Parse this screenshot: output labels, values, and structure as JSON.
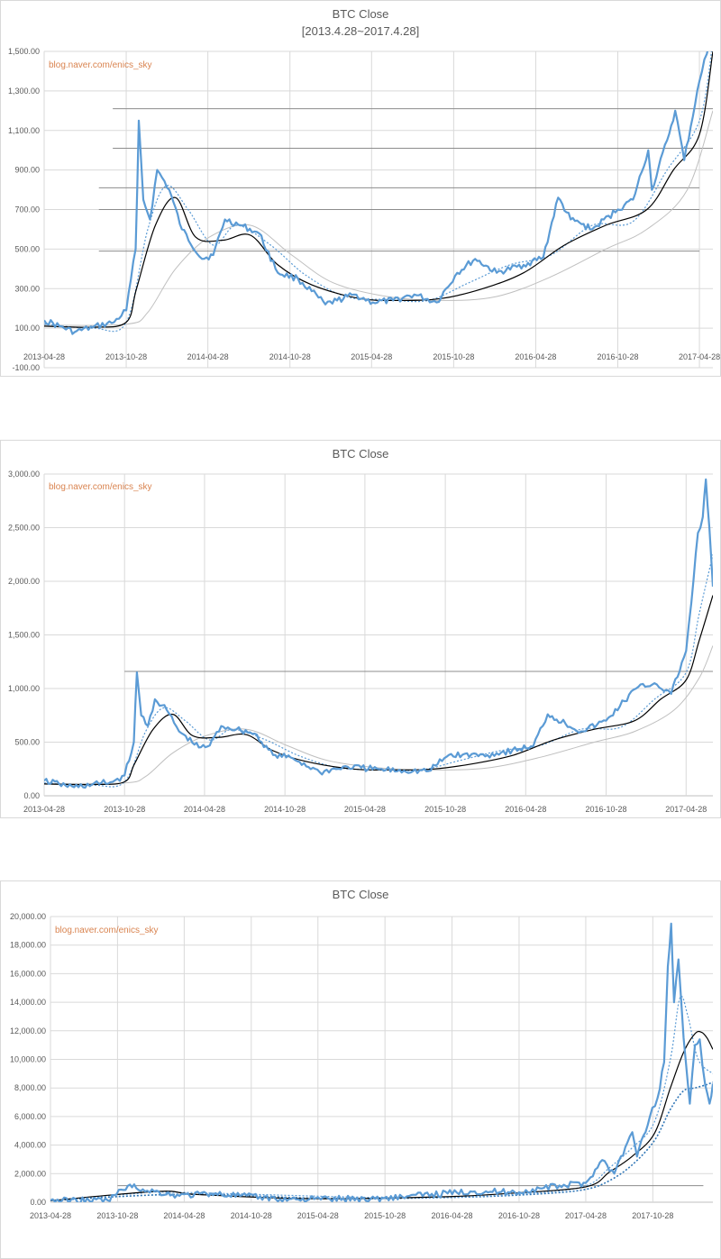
{
  "chart_data": [
    {
      "type": "line",
      "title": "BTC Close",
      "subtitle": "[2013.4.28~2017.4.28]",
      "watermark": "blog.naver.com/enics_sky",
      "x_tick_labels": [
        "2013-04-28",
        "2013-10-28",
        "2014-04-28",
        "2014-10-28",
        "2015-04-28",
        "2015-10-28",
        "2016-04-28",
        "2016-10-28",
        "2017-04-28"
      ],
      "y_tick_labels": [
        "-100.00",
        "100.00",
        "300.00",
        "500.00",
        "700.00",
        "900.00",
        "1,100.00",
        "1,300.00",
        "1,500.00"
      ],
      "ylim": [
        -100,
        1500
      ],
      "xlim": [
        "2013-04-28",
        "2017-05-28"
      ],
      "grid": true,
      "legend": "none",
      "h_lines": [
        {
          "y": 1210,
          "x_start": "2013-09-28",
          "x_end": "2017-05-28"
        },
        {
          "y": 1010,
          "x_start": "2013-09-28",
          "x_end": "2017-05-28"
        },
        {
          "y": 810,
          "x_start": "2013-08-28",
          "x_end": "2017-04-28"
        },
        {
          "y": 700,
          "x_start": "2013-08-28",
          "x_end": "2017-04-28"
        },
        {
          "y": 490,
          "x_start": "2013-08-28",
          "x_end": "2017-04-28"
        }
      ],
      "series": [
        {
          "style": "price",
          "color": "#5b9bd5",
          "x": [
            "2013-04-28",
            "2013-06-01",
            "2013-07-05",
            "2013-08-15",
            "2013-10-01",
            "2013-10-28",
            "2013-11-18",
            "2013-11-25",
            "2013-12-05",
            "2013-12-20",
            "2014-01-05",
            "2014-02-01",
            "2014-03-01",
            "2014-04-15",
            "2014-05-10",
            "2014-06-05",
            "2014-07-10",
            "2014-08-20",
            "2014-10-01",
            "2014-11-15",
            "2015-01-15",
            "2015-02-10",
            "2015-03-20",
            "2015-05-01",
            "2015-06-15",
            "2015-08-01",
            "2015-09-20",
            "2015-11-05",
            "2015-12-15",
            "2016-02-01",
            "2016-04-01",
            "2016-05-15",
            "2016-06-17",
            "2016-07-15",
            "2016-09-01",
            "2016-10-28",
            "2016-12-01",
            "2017-01-04",
            "2017-01-12",
            "2017-02-15",
            "2017-03-05",
            "2017-03-25",
            "2017-04-28",
            "2017-05-20"
          ],
          "y": [
            140,
            110,
            80,
            105,
            130,
            190,
            500,
            1150,
            750,
            650,
            900,
            800,
            600,
            450,
            470,
            650,
            620,
            580,
            380,
            350,
            220,
            240,
            270,
            230,
            240,
            270,
            230,
            380,
            450,
            380,
            420,
            460,
            760,
            650,
            600,
            700,
            750,
            1000,
            800,
            1050,
            1200,
            950,
            1350,
            1540
          ]
        },
        {
          "style": "dotted",
          "color": "#5b9bd5",
          "x": [
            "2013-04-28",
            "2013-08-15",
            "2013-10-28",
            "2013-12-15",
            "2014-01-25",
            "2014-03-15",
            "2014-05-10",
            "2014-07-01",
            "2014-09-15",
            "2014-12-01",
            "2015-03-01",
            "2015-06-01",
            "2015-09-01",
            "2015-12-01",
            "2016-03-01",
            "2016-06-01",
            "2016-09-01",
            "2016-12-01",
            "2017-02-15",
            "2017-04-28",
            "2017-05-28"
          ],
          "y": [
            120,
            100,
            130,
            600,
            820,
            700,
            520,
            620,
            520,
            370,
            260,
            245,
            240,
            330,
            420,
            470,
            620,
            640,
            900,
            1150,
            1550
          ]
        },
        {
          "style": "black",
          "color": "#000000",
          "x": [
            "2013-04-28",
            "2013-08-15",
            "2013-10-28",
            "2013-11-20",
            "2014-01-01",
            "2014-02-15",
            "2014-04-01",
            "2014-06-01",
            "2014-08-01",
            "2014-10-01",
            "2014-12-15",
            "2015-04-01",
            "2015-07-01",
            "2015-10-01",
            "2016-01-01",
            "2016-04-01",
            "2016-07-01",
            "2016-10-01",
            "2017-01-01",
            "2017-03-01",
            "2017-04-28",
            "2017-05-28"
          ],
          "y": [
            110,
            105,
            130,
            300,
            620,
            760,
            560,
            545,
            570,
            420,
            320,
            250,
            240,
            250,
            300,
            380,
            520,
            620,
            700,
            900,
            1080,
            1500
          ]
        },
        {
          "style": "grey",
          "color": "#bfbfbf",
          "x": [
            "2013-04-28",
            "2013-10-28",
            "2013-12-15",
            "2014-02-15",
            "2014-05-01",
            "2014-08-01",
            "2014-11-01",
            "2015-02-01",
            "2015-06-01",
            "2015-10-01",
            "2016-02-01",
            "2016-06-01",
            "2016-10-01",
            "2017-01-01",
            "2017-04-01",
            "2017-05-28"
          ],
          "y": [
            115,
            120,
            180,
            400,
            560,
            620,
            470,
            330,
            260,
            240,
            260,
            360,
            500,
            600,
            800,
            1200
          ]
        }
      ]
    },
    {
      "type": "line",
      "title": "BTC Close",
      "watermark": "blog.naver.com/enics_sky",
      "x_tick_labels": [
        "2013-04-28",
        "2013-10-28",
        "2014-04-28",
        "2014-10-28",
        "2015-04-28",
        "2015-10-28",
        "2016-04-28",
        "2016-10-28",
        "2017-04-28"
      ],
      "y_tick_labels": [
        "0.00",
        "500.00",
        "1,000.00",
        "1,500.00",
        "2,000.00",
        "2,500.00",
        "3,000.00"
      ],
      "ylim": [
        0,
        3000
      ],
      "xlim": [
        "2013-04-28",
        "2017-06-28"
      ],
      "grid": true,
      "legend": "none",
      "h_lines": [
        {
          "y": 1160,
          "x_start": "2013-10-28",
          "x_end": "2017-06-28"
        }
      ],
      "series": [
        {
          "style": "price",
          "color": "#5b9bd5",
          "x": [
            "2013-04-28",
            "2013-06-01",
            "2013-07-05",
            "2013-08-15",
            "2013-10-01",
            "2013-10-28",
            "2013-11-18",
            "2013-11-25",
            "2013-12-05",
            "2013-12-20",
            "2014-01-05",
            "2014-02-01",
            "2014-03-01",
            "2014-04-15",
            "2014-05-10",
            "2014-06-05",
            "2014-07-10",
            "2014-08-20",
            "2014-10-01",
            "2014-11-15",
            "2015-01-15",
            "2015-03-20",
            "2015-06-15",
            "2015-09-20",
            "2015-11-05",
            "2016-02-01",
            "2016-05-15",
            "2016-06-17",
            "2016-09-01",
            "2016-10-28",
            "2017-01-04",
            "2017-02-15",
            "2017-03-25",
            "2017-04-28",
            "2017-05-10",
            "2017-05-25",
            "2017-06-05",
            "2017-06-12",
            "2017-06-20",
            "2017-06-28"
          ],
          "y": [
            140,
            110,
            80,
            105,
            130,
            190,
            500,
            1150,
            750,
            650,
            900,
            800,
            600,
            450,
            470,
            650,
            620,
            580,
            380,
            350,
            220,
            270,
            240,
            230,
            380,
            380,
            460,
            760,
            600,
            700,
            1000,
            1050,
            950,
            1350,
            1800,
            2450,
            2600,
            2950,
            2500,
            1950
          ]
        },
        {
          "style": "dotted",
          "color": "#5b9bd5",
          "x": [
            "2013-04-28",
            "2013-08-15",
            "2013-10-28",
            "2013-12-15",
            "2014-01-25",
            "2014-03-15",
            "2014-05-10",
            "2014-07-01",
            "2014-09-15",
            "2014-12-01",
            "2015-03-01",
            "2015-06-01",
            "2015-09-01",
            "2015-12-01",
            "2016-03-01",
            "2016-06-01",
            "2016-09-01",
            "2016-12-01",
            "2017-02-15",
            "2017-04-28",
            "2017-05-28",
            "2017-06-28"
          ],
          "y": [
            120,
            100,
            130,
            600,
            820,
            700,
            520,
            620,
            520,
            370,
            260,
            245,
            240,
            330,
            420,
            470,
            620,
            640,
            900,
            1150,
            1700,
            2250
          ]
        },
        {
          "style": "black",
          "color": "#000000",
          "x": [
            "2013-04-28",
            "2013-08-15",
            "2013-10-28",
            "2013-11-20",
            "2014-01-01",
            "2014-02-15",
            "2014-04-01",
            "2014-06-01",
            "2014-08-01",
            "2014-10-01",
            "2014-12-15",
            "2015-04-01",
            "2015-07-01",
            "2015-10-01",
            "2016-01-01",
            "2016-04-01",
            "2016-07-01",
            "2016-10-01",
            "2017-01-01",
            "2017-03-01",
            "2017-04-28",
            "2017-05-28",
            "2017-06-28"
          ],
          "y": [
            110,
            105,
            130,
            300,
            620,
            760,
            560,
            545,
            570,
            420,
            320,
            250,
            240,
            250,
            300,
            380,
            520,
            620,
            700,
            900,
            1080,
            1450,
            1870
          ]
        },
        {
          "style": "grey",
          "color": "#bfbfbf",
          "x": [
            "2013-04-28",
            "2013-10-28",
            "2013-12-15",
            "2014-02-15",
            "2014-05-01",
            "2014-08-01",
            "2014-11-01",
            "2015-02-01",
            "2015-06-01",
            "2015-10-01",
            "2016-02-01",
            "2016-06-01",
            "2016-10-01",
            "2017-01-01",
            "2017-04-01",
            "2017-05-28",
            "2017-06-28"
          ],
          "y": [
            115,
            120,
            180,
            400,
            560,
            620,
            470,
            330,
            260,
            240,
            260,
            360,
            500,
            600,
            800,
            1100,
            1400
          ]
        }
      ]
    },
    {
      "type": "line",
      "title": "BTC Close",
      "watermark": "blog.naver.com/enics_sky",
      "x_tick_labels": [
        "2013-04-28",
        "2013-10-28",
        "2014-04-28",
        "2014-10-28",
        "2015-04-28",
        "2015-10-28",
        "2016-04-28",
        "2016-10-28",
        "2017-04-28",
        "2017-10-28"
      ],
      "y_tick_labels": [
        "0.00",
        "2,000.00",
        "4,000.00",
        "6,000.00",
        "8,000.00",
        "10,000.00",
        "12,000.00",
        "14,000.00",
        "16,000.00",
        "18,000.00",
        "20,000.00"
      ],
      "ylim": [
        0,
        20000
      ],
      "xlim": [
        "2013-04-28",
        "2018-04-10"
      ],
      "grid": true,
      "legend": "none",
      "h_lines": [
        {
          "y": 1160,
          "x_start": "2013-10-28",
          "x_end": "2018-03-15"
        }
      ],
      "series": [
        {
          "style": "price",
          "color": "#5b9bd5",
          "x": [
            "2013-04-28",
            "2013-10-01",
            "2013-11-25",
            "2014-01-05",
            "2014-04-15",
            "2014-07-10",
            "2015-01-15",
            "2015-10-01",
            "2016-06-17",
            "2016-10-28",
            "2017-01-04",
            "2017-04-28",
            "2017-06-12",
            "2017-07-15",
            "2017-08-20",
            "2017-09-02",
            "2017-09-15",
            "2017-10-20",
            "2017-11-10",
            "2017-11-28",
            "2017-12-08",
            "2017-12-17",
            "2017-12-25",
            "2018-01-06",
            "2018-01-20",
            "2018-02-06",
            "2018-02-20",
            "2018-03-05",
            "2018-03-20",
            "2018-04-01",
            "2018-04-10"
          ],
          "y": [
            140,
            130,
            1150,
            900,
            450,
            620,
            220,
            240,
            760,
            700,
            1000,
            1350,
            2950,
            2000,
            4200,
            4900,
            3200,
            6000,
            7300,
            9800,
            16500,
            19500,
            14000,
            17000,
            11500,
            6900,
            11000,
            11400,
            8200,
            6900,
            8300
          ]
        },
        {
          "style": "dotted",
          "color": "#5b9bd5",
          "x": [
            "2013-04-28",
            "2013-12-15",
            "2014-04-01",
            "2016-01-01",
            "2016-12-01",
            "2017-04-28",
            "2017-07-01",
            "2017-09-01",
            "2017-11-01",
            "2017-12-15",
            "2018-01-10",
            "2018-02-01",
            "2018-03-01",
            "2018-04-10"
          ],
          "y": [
            120,
            600,
            700,
            300,
            640,
            1150,
            2400,
            3800,
            5600,
            10000,
            14300,
            13000,
            10000,
            9000
          ]
        },
        {
          "style": "black",
          "color": "#000000",
          "x": [
            "2013-04-28",
            "2014-02-15",
            "2014-06-01",
            "2015-04-01",
            "2016-04-01",
            "2016-10-01",
            "2017-04-28",
            "2017-07-01",
            "2017-09-01",
            "2017-11-01",
            "2017-12-15",
            "2018-01-20",
            "2018-02-20",
            "2018-03-10",
            "2018-03-25",
            "2018-04-10"
          ],
          "y": [
            110,
            760,
            545,
            250,
            380,
            620,
            1080,
            2100,
            3200,
            4800,
            8000,
            10500,
            11800,
            11900,
            11500,
            10700
          ]
        },
        {
          "style": "dotted-dark",
          "color": "#2e75b6",
          "x": [
            "2013-04-28",
            "2014-05-01",
            "2015-06-01",
            "2016-06-01",
            "2017-01-01",
            "2017-04-28",
            "2017-07-01",
            "2017-09-01",
            "2017-11-01",
            "2017-12-15",
            "2018-01-20",
            "2018-02-20",
            "2018-03-20",
            "2018-04-10"
          ],
          "y": [
            115,
            560,
            260,
            360,
            600,
            900,
            1500,
            2600,
            4300,
            6500,
            7800,
            8000,
            8200,
            8400
          ]
        }
      ]
    }
  ]
}
